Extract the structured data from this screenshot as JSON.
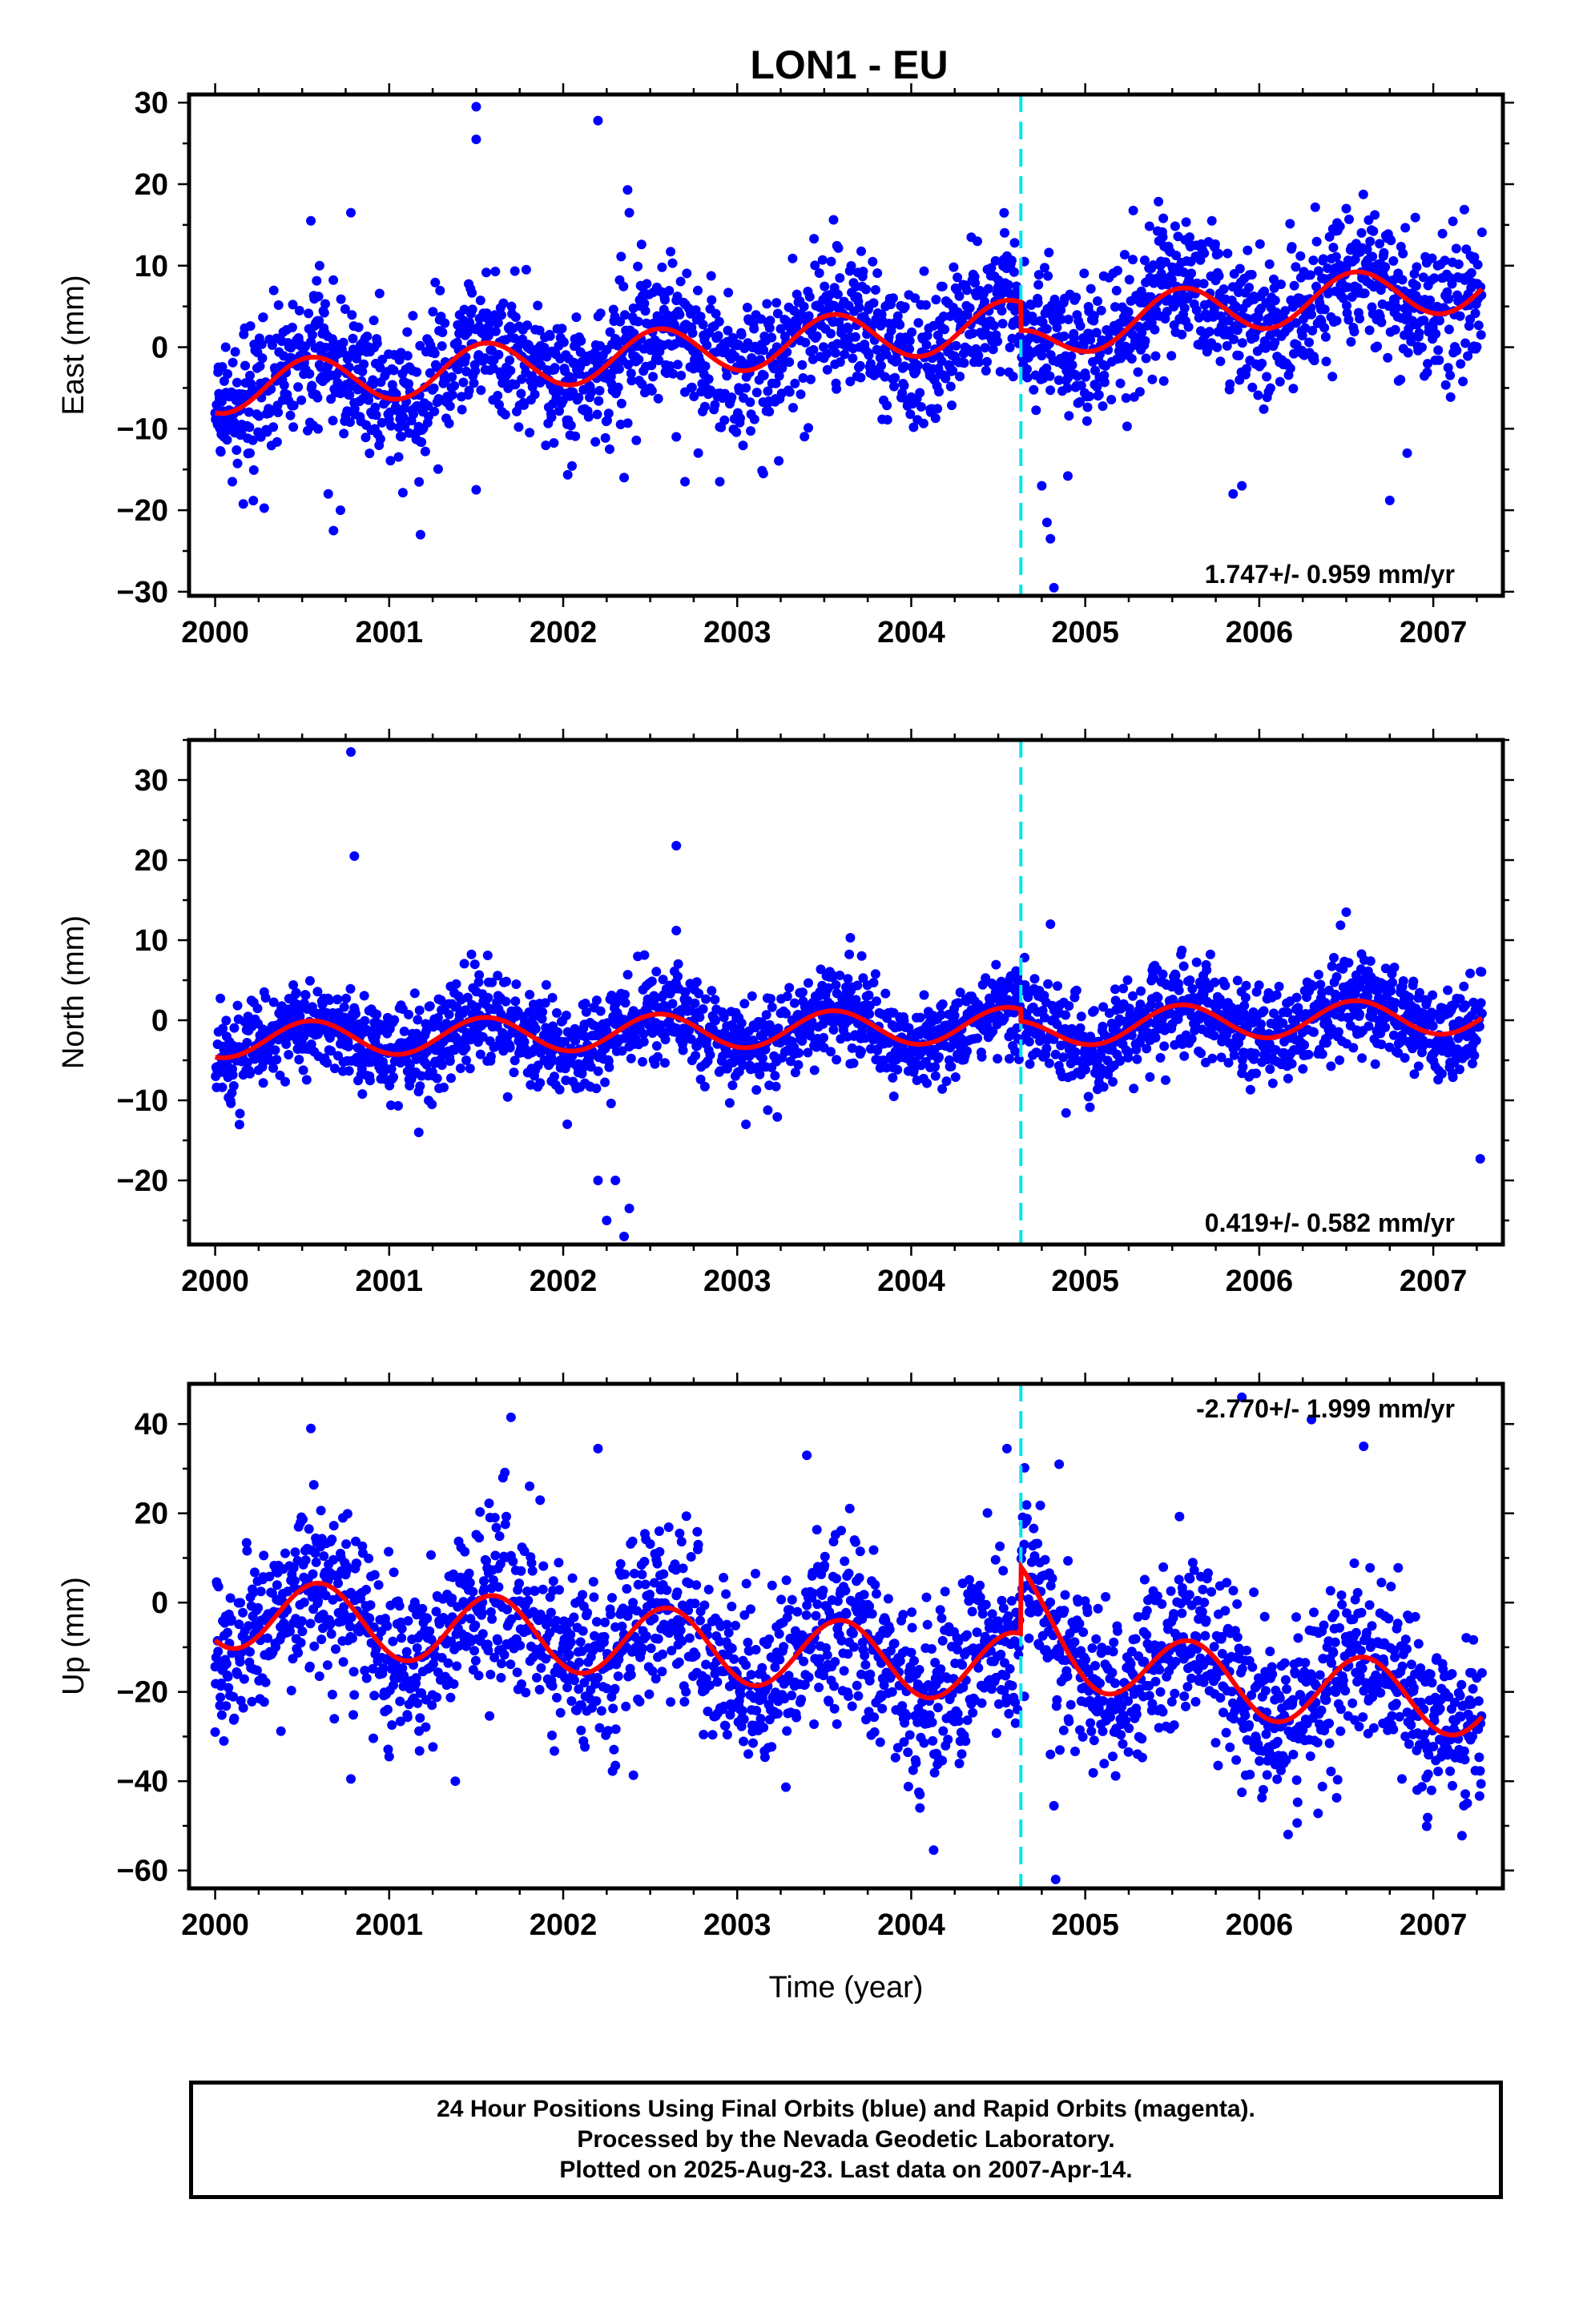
{
  "title": "LON1 - EU",
  "colors": {
    "points": "#0000ff",
    "fit": "#ff0000",
    "event": "#00e5ee",
    "frame": "#000000"
  },
  "chart_data": [
    {
      "type": "scatter",
      "name": "east",
      "ylabel": "East (mm)",
      "xlabel": "",
      "xlim": [
        1999.85,
        2007.4
      ],
      "ylim": [
        -30.5,
        31
      ],
      "yticks": [
        -30,
        -20,
        -10,
        0,
        10,
        20,
        30
      ],
      "xticks": [
        2000,
        2001,
        2002,
        2003,
        2004,
        2005,
        2006,
        2007
      ],
      "rate": "1.747+/- 0.959 mm/yr",
      "rate_position": "bottom-right",
      "event_x": 2004.63,
      "fit": {
        "trend": 1.747,
        "offset_at_2000": -5.2,
        "annual_amp": 3.0,
        "peak_phase": 0.55,
        "step_at_event": -3.5
      },
      "scatter_sigma": 4.2,
      "outliers": [
        {
          "x": 2000.05,
          "y": -11
        },
        {
          "x": 2000.2,
          "y": -13
        },
        {
          "x": 2000.55,
          "y": 15.5
        },
        {
          "x": 2000.6,
          "y": 10
        },
        {
          "x": 2000.65,
          "y": -18
        },
        {
          "x": 2000.68,
          "y": -22.5
        },
        {
          "x": 2000.72,
          "y": -20
        },
        {
          "x": 2000.78,
          "y": 16.5
        },
        {
          "x": 2001.18,
          "y": -23
        },
        {
          "x": 2001.5,
          "y": 29.5
        },
        {
          "x": 2001.5,
          "y": 25.5
        },
        {
          "x": 2001.5,
          "y": -17.5
        },
        {
          "x": 2002.2,
          "y": 27.8
        },
        {
          "x": 2002.35,
          "y": -16
        },
        {
          "x": 2002.37,
          "y": 19.3
        },
        {
          "x": 2002.38,
          "y": 16.5
        },
        {
          "x": 2002.65,
          "y": -11
        },
        {
          "x": 2002.7,
          "y": -16.5
        },
        {
          "x": 2002.9,
          "y": -16.5
        },
        {
          "x": 2003.15,
          "y": -15.5
        },
        {
          "x": 2004.38,
          "y": 13
        },
        {
          "x": 2004.65,
          "y": 10.5
        },
        {
          "x": 2004.75,
          "y": -17
        },
        {
          "x": 2004.78,
          "y": -21.5
        },
        {
          "x": 2004.8,
          "y": -23.5
        },
        {
          "x": 2004.82,
          "y": -29.5
        },
        {
          "x": 2004.9,
          "y": -15.8
        },
        {
          "x": 2005.6,
          "y": 13.5
        },
        {
          "x": 2005.85,
          "y": -18
        },
        {
          "x": 2005.9,
          "y": -17
        },
        {
          "x": 2006.5,
          "y": 17
        },
        {
          "x": 2006.75,
          "y": -18.8
        },
        {
          "x": 2006.85,
          "y": -13
        }
      ]
    },
    {
      "type": "scatter",
      "name": "north",
      "ylabel": "North (mm)",
      "xlabel": "",
      "xlim": [
        1999.85,
        2007.4
      ],
      "ylim": [
        -28,
        35
      ],
      "yticks": [
        -20,
        -10,
        0,
        10,
        20,
        30
      ],
      "xticks": [
        2000,
        2001,
        2002,
        2003,
        2004,
        2005,
        2006,
        2007
      ],
      "rate": "0.419+/- 0.582 mm/yr",
      "rate_position": "bottom-right",
      "event_x": 2004.63,
      "fit": {
        "trend": 0.419,
        "offset_at_2000": -2.5,
        "annual_amp": 2.2,
        "peak_phase": 0.55,
        "step_at_event": -1.5
      },
      "scatter_sigma": 2.9,
      "outliers": [
        {
          "x": 2000.78,
          "y": 33.5
        },
        {
          "x": 2000.8,
          "y": 20.5
        },
        {
          "x": 2002.2,
          "y": -20
        },
        {
          "x": 2002.25,
          "y": -25
        },
        {
          "x": 2002.3,
          "y": -20
        },
        {
          "x": 2002.35,
          "y": -27
        },
        {
          "x": 2002.38,
          "y": -23.5
        },
        {
          "x": 2002.65,
          "y": 21.8
        },
        {
          "x": 2002.65,
          "y": 11.2
        },
        {
          "x": 2001.17,
          "y": -14
        },
        {
          "x": 2003.05,
          "y": -13
        },
        {
          "x": 2004.8,
          "y": 12
        },
        {
          "x": 2006.5,
          "y": 13.5
        },
        {
          "x": 2007.27,
          "y": -17.3
        },
        {
          "x": 2003.65,
          "y": 10.3
        },
        {
          "x": 2003.9,
          "y": -9.5
        }
      ]
    },
    {
      "type": "scatter",
      "name": "up",
      "ylabel": "Up (mm)",
      "xlabel": "Time (year)",
      "xlim": [
        1999.85,
        2007.4
      ],
      "ylim": [
        -64,
        49
      ],
      "yticks": [
        -60,
        -40,
        -20,
        0,
        20,
        40
      ],
      "xticks": [
        2000,
        2001,
        2002,
        2003,
        2004,
        2005,
        2006,
        2007
      ],
      "rate": "-2.770+/- 1.999 mm/yr",
      "rate_position": "top-right",
      "event_x": 2004.63,
      "fit": {
        "trend": -2.77,
        "offset_at_2000": -2.0,
        "annual_amp": 8.0,
        "peak_phase": 0.6,
        "step_at_event": 15.0
      },
      "scatter_sigma": 9.5,
      "outliers": [
        {
          "x": 2000.55,
          "y": 39
        },
        {
          "x": 2000.78,
          "y": -39.5
        },
        {
          "x": 2001.0,
          "y": -34.5
        },
        {
          "x": 2001.38,
          "y": -40
        },
        {
          "x": 2001.7,
          "y": 41.5
        },
        {
          "x": 2002.2,
          "y": 34.5
        },
        {
          "x": 2002.3,
          "y": -36.5
        },
        {
          "x": 2003.4,
          "y": 33
        },
        {
          "x": 2004.05,
          "y": -46
        },
        {
          "x": 2004.05,
          "y": -43
        },
        {
          "x": 2004.55,
          "y": 34.5
        },
        {
          "x": 2004.65,
          "y": -21
        },
        {
          "x": 2004.8,
          "y": -34
        },
        {
          "x": 2004.82,
          "y": -45.5
        },
        {
          "x": 2004.83,
          "y": -62
        },
        {
          "x": 2004.85,
          "y": 31
        },
        {
          "x": 2005.9,
          "y": 46
        },
        {
          "x": 2005.9,
          "y": -42.5
        },
        {
          "x": 2006.3,
          "y": 41
        },
        {
          "x": 2006.6,
          "y": 35
        },
        {
          "x": 2006.25,
          "y": -27.5
        },
        {
          "x": 2000.0,
          "y": -29
        },
        {
          "x": 2000.05,
          "y": -31
        }
      ]
    }
  ],
  "caption": {
    "line1": "24 Hour Positions Using Final Orbits (blue) and Rapid Orbits (magenta).",
    "line2": "Processed by the Nevada Geodetic Laboratory.",
    "line3": "Plotted on 2025-Aug-23. Last data on 2007-Apr-14."
  }
}
